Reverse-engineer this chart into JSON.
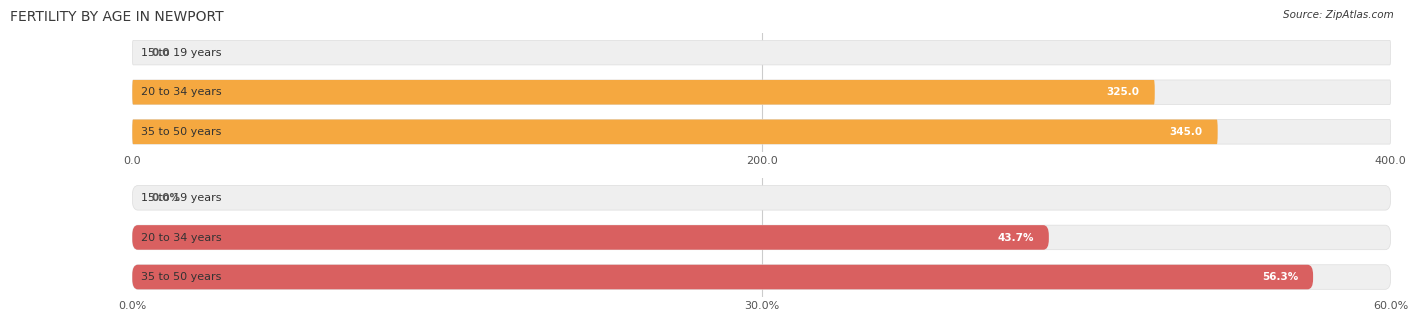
{
  "title": "FERTILITY BY AGE IN NEWPORT",
  "source": "Source: ZipAtlas.com",
  "top_chart": {
    "categories": [
      "15 to 19 years",
      "20 to 34 years",
      "35 to 50 years"
    ],
    "values": [
      0.0,
      325.0,
      345.0
    ],
    "xlim": [
      0,
      400
    ],
    "xticks": [
      0.0,
      200.0,
      400.0
    ],
    "xtick_labels": [
      "0.0",
      "200.0",
      "400.0"
    ],
    "bar_color": "#F5A840",
    "bar_bg_color": "#EFEFEF",
    "bar_height": 0.62
  },
  "bottom_chart": {
    "categories": [
      "15 to 19 years",
      "20 to 34 years",
      "35 to 50 years"
    ],
    "values": [
      0.0,
      43.7,
      56.3
    ],
    "xlim": [
      0,
      60
    ],
    "xticks": [
      0.0,
      30.0,
      60.0
    ],
    "xtick_labels": [
      "0.0%",
      "30.0%",
      "60.0%"
    ],
    "bar_color": "#D96060",
    "bar_bg_color": "#EFEFEF",
    "bar_height": 0.62
  },
  "fig_bg_color": "#FFFFFF",
  "title_color": "#3A3A3A",
  "title_fontsize": 10,
  "source_fontsize": 7.5,
  "label_fontsize": 7.5,
  "tick_fontsize": 8,
  "cat_fontsize": 8
}
